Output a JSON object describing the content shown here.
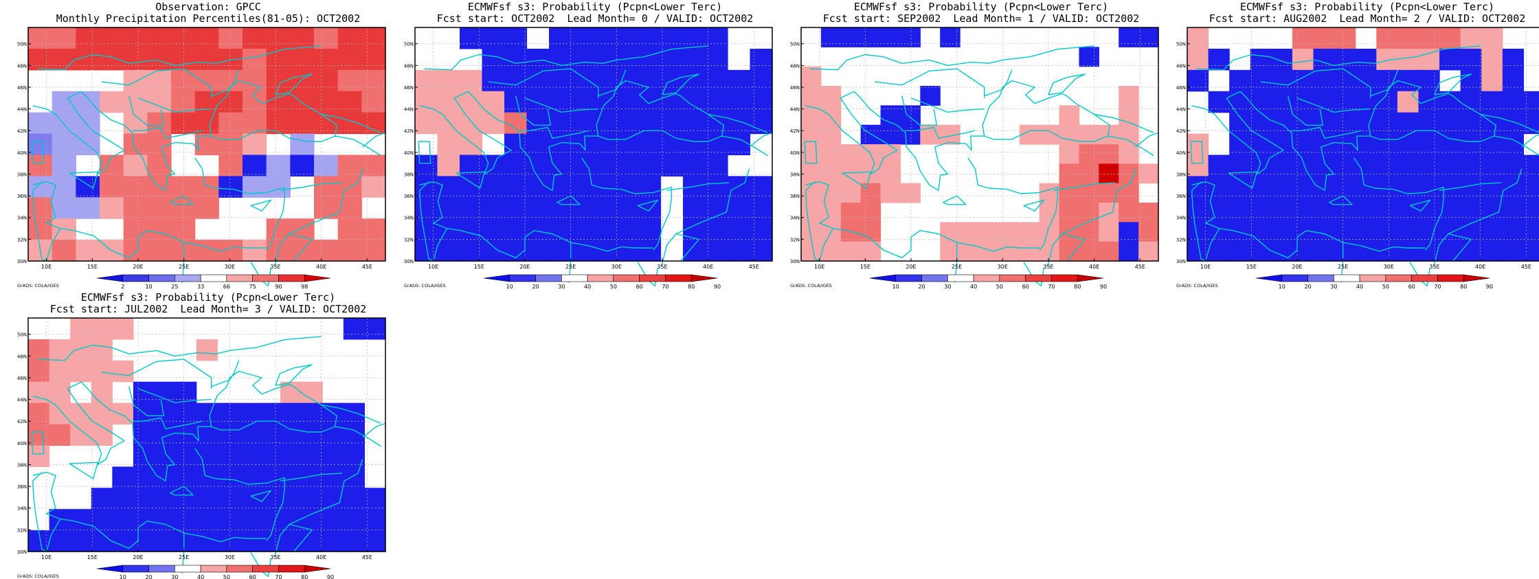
{
  "panels": [
    {
      "title1": "Observation: GPCC",
      "title2": "Monthly Precipitation Percentiles(81-05): OCT2002",
      "scale": "pct",
      "grid": [
        "rrRRRRRRrRRRrRR",
        "RRRRRRRRRrRRRRR",
        "0000pprrrrRRRrrR",
        "0bbppprRRrRRRRr0",
        "bbb0prRRrrRRRRRR",
        "ebb0rr0rrp0b0000",
        "rb0rpr00rBbBbrrb",
        "bbBrrrrrBbb0rrpB",
        "rbbprrrr0000rr0D",
        "rp00rrr000rr0rrr",
        "prpprrrrrprrrrrr"
      ]
    },
    {
      "title1": "ECMWFsf s3: Probability (Pcpn<Lower Terc)",
      "title2": "Fcst start: OCT2002  Lead Month= 0 / VALID: OCT2002",
      "scale": "prob",
      "grid": [
        "00BBB0BBBBBBBB00",
        "000BBBBBBBBBBB0B",
        "pppBBBBBBBBBBBBB",
        "ppppBBBBBBBBBBBB",
        "pppprBBBBBBBBBBB",
        "0pp0BBBBBBBBBBB0",
        "BpBBBBBBBBBBBB00",
        "BBBBBBBBBBB0BBBB",
        "BBBBBBBBBBB0BBBB",
        "BBBBBBBBBBB0BBBB",
        "BBBBBBBBBBB0BBBB"
      ]
    },
    {
      "title1": "ECMWFsf s3: Probability (Pcpn<Lower Terc)",
      "title2": "Fcst start: SEP2002  Lead Month= 1 / VALID: OCT2002",
      "scale": "prob",
      "grid": [
        "0BBBBB0B00000000BB",
        "00000000000000B000",
        "p00000000000000000",
        "pp0000B000000000p0",
        "pp00BB0000000p00p0",
        "pp0BBBpp000pppppp0",
        "ppppp00000000prrp0",
        "ppppp00000000rrDrp",
        "ppprpp000000prrrr0",
        "pprr00000000prrprr",
        "pprr000pppppprrpBr",
        "pppp000pppppprrrBp"
      ]
    },
    {
      "title1": "ECMWFsf s3: Probability (Pcpn<Lower Terc)",
      "title2": "Fcst start: AUG2002  Lead Month= 2 / VALID: OCT2002",
      "scale": "prob",
      "grid": [
        "p0000rrr0rrrrpp00",
        "pB0BBpBBBpppBBpB0",
        "B0BBBBBBBBBB0BpB0",
        "0BBBBBBBBBpBBBBBB",
        "00BBBBBBBBBBBBBBB",
        "p0BBBBBBBBBBBBBB0",
        "pBBBBBBBBBBBBBBBB",
        "BBBBBBBBBBBBBBBBB",
        "BBBBBBBBBBBBBBBBB",
        "BBBBBBBBBBBBBBBBB",
        "BBBBBBBBBBBBBBBBB"
      ]
    },
    {
      "title1": "ECMWFsf s3: Probability (Pcpn<Lower Terc)",
      "title2": "Fcst start: JUL2002  Lead Month= 3 / VALID: OCT2002",
      "scale": "prob",
      "grid": [
        "00ppp0000000000BB",
        "rppp0000p00000000",
        "rpppp000000000000",
        "pp0p0BBB0000pp000",
        "rppppBBBBBBBBBBB0",
        "rrpp0BBBBBBBBBBB0",
        "p0000BBBBBBBBBBB0",
        "0000BBBBBBBBBBBB0",
        "000BBBBBBBBBBBBBB",
        "0BBBBBBBBBBBBBBBB",
        "BBBBBBBBBBBBBBBBB"
      ]
    }
  ],
  "axes": {
    "x_ticks": [
      "10E",
      "15E",
      "20E",
      "25E",
      "30E",
      "35E",
      "40E",
      "45E"
    ],
    "y_ticks": [
      "30N",
      "32N",
      "34N",
      "36N",
      "38N",
      "40N",
      "42N",
      "44N",
      "46N",
      "48N",
      "50N"
    ]
  },
  "colorbars": {
    "pct": {
      "labels": [
        "2",
        "10",
        "25",
        "33",
        "66",
        "75",
        "90",
        "98"
      ],
      "colors": [
        "#1515e0",
        "#3a3ae8",
        "#6d6ded",
        "#a7a7f2",
        "#ffffff",
        "#f6a6a6",
        "#f07070",
        "#e83232",
        "#d60000"
      ]
    },
    "prob": {
      "labels": [
        "10",
        "20",
        "30",
        "40",
        "50",
        "60",
        "70",
        "80",
        "90"
      ],
      "colors": [
        "#1010ea",
        "#3434ee",
        "#7474f0",
        "#ffffff",
        "#f7a4a4",
        "#f07070",
        "#ea4040",
        "#e21616",
        "#c80000"
      ]
    }
  },
  "cell_colors": {
    "0": "#ffffff",
    "b": "#a4a4f2",
    "e": "#7d7df0",
    "B": "#1e1eea",
    "D": "#d00000",
    "p": "#f6a6a6",
    "r": "#f07070",
    "R": "#e83a3a"
  },
  "credit": "GrADS: COLA/IGES",
  "coast_color": "#00c8c8"
}
